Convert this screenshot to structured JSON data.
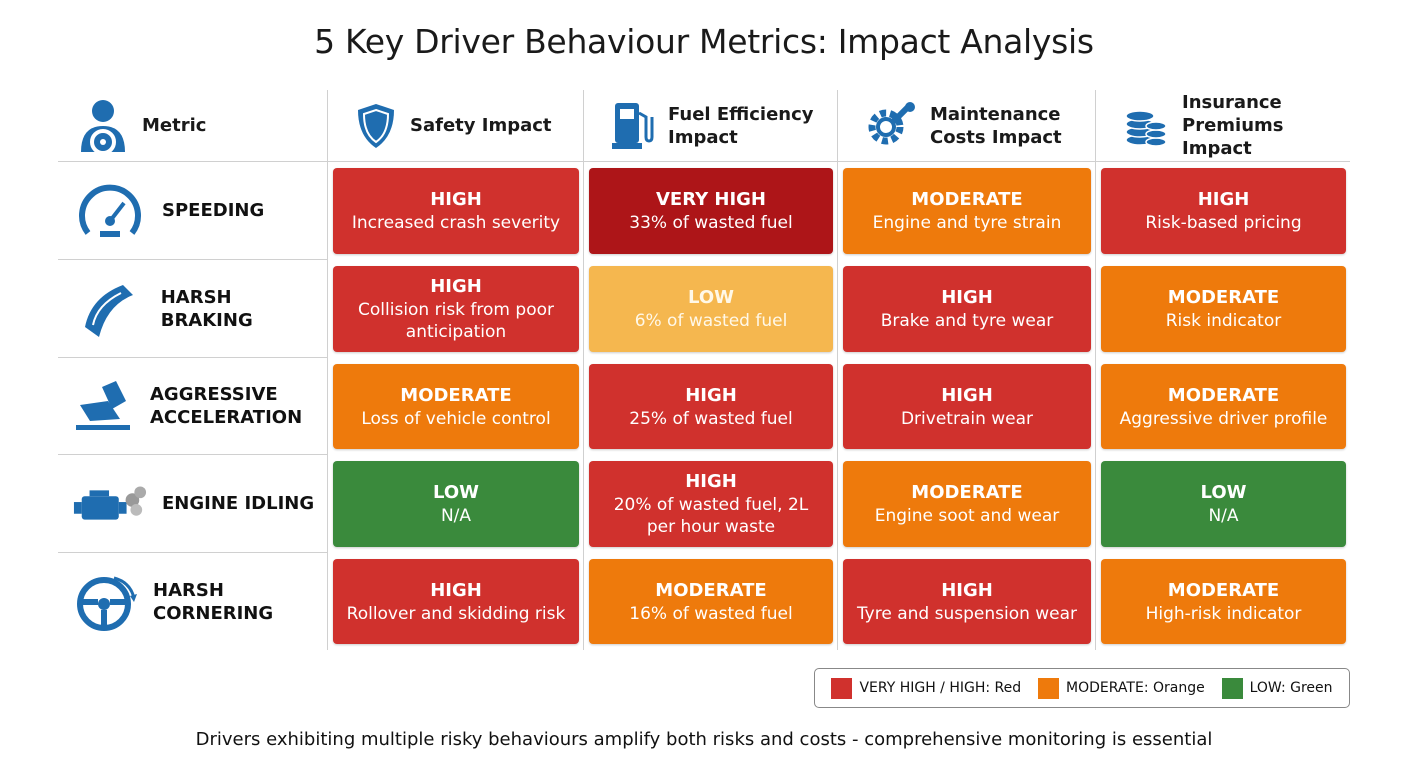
{
  "title": "5 Key Driver Behaviour Metrics: Impact Analysis",
  "colors": {
    "icon": "#1f6db0",
    "very_high": "#ad1518",
    "high": "#d0312d",
    "moderate": "#ee7a0c",
    "low_yellow": "#f5b74f",
    "low_green": "#3a8a3c"
  },
  "headers": [
    {
      "label": "Metric",
      "icon": "driver-icon"
    },
    {
      "label": "Safety Impact",
      "icon": "shield-icon"
    },
    {
      "label": "Fuel Efficiency Impact",
      "icon": "fuel-pump-icon"
    },
    {
      "label": "Maintenance Costs Impact",
      "icon": "gear-wrench-icon"
    },
    {
      "label": "Insurance Premiums Impact",
      "icon": "coins-icon"
    }
  ],
  "rows": [
    {
      "metric": "SPEEDING",
      "icon": "speedometer-icon",
      "cells": [
        {
          "level": "HIGH",
          "desc": "Increased crash severity",
          "color": "high"
        },
        {
          "level": "VERY HIGH",
          "desc": "33% of wasted fuel",
          "color": "very_high"
        },
        {
          "level": "MODERATE",
          "desc": "Engine and tyre strain",
          "color": "moderate"
        },
        {
          "level": "HIGH",
          "desc": "Risk-based pricing",
          "color": "high"
        }
      ]
    },
    {
      "metric": "HARSH BRAKING",
      "icon": "brake-pad-icon",
      "cells": [
        {
          "level": "HIGH",
          "desc": "Collision risk from poor anticipation",
          "color": "high"
        },
        {
          "level": "LOW",
          "desc": "6% of wasted fuel",
          "color": "low_yellow"
        },
        {
          "level": "HIGH",
          "desc": "Brake and tyre wear",
          "color": "high"
        },
        {
          "level": "MODERATE",
          "desc": "Risk indicator",
          "color": "moderate"
        }
      ]
    },
    {
      "metric": "AGGRESSIVE ACCELERATION",
      "icon": "accelerator-pedal-icon",
      "cells": [
        {
          "level": "MODERATE",
          "desc": "Loss of vehicle control",
          "color": "moderate"
        },
        {
          "level": "HIGH",
          "desc": "25% of wasted fuel",
          "color": "high"
        },
        {
          "level": "HIGH",
          "desc": "Drivetrain wear",
          "color": "high"
        },
        {
          "level": "MODERATE",
          "desc": "Aggressive driver profile",
          "color": "moderate"
        }
      ]
    },
    {
      "metric": "ENGINE IDLING",
      "icon": "engine-icon",
      "cells": [
        {
          "level": "LOW",
          "desc": "N/A",
          "color": "low_green"
        },
        {
          "level": "HIGH",
          "desc": "20% of wasted fuel, 2L per hour waste",
          "color": "high"
        },
        {
          "level": "MODERATE",
          "desc": "Engine soot and wear",
          "color": "moderate"
        },
        {
          "level": "LOW",
          "desc": "N/A",
          "color": "low_green"
        }
      ]
    },
    {
      "metric": "HARSH CORNERING",
      "icon": "steering-wheel-icon",
      "cells": [
        {
          "level": "HIGH",
          "desc": "Rollover and skidding risk",
          "color": "high"
        },
        {
          "level": "MODERATE",
          "desc": "16% of wasted fuel",
          "color": "moderate"
        },
        {
          "level": "HIGH",
          "desc": "Tyre and suspension wear",
          "color": "high"
        },
        {
          "level": "MODERATE",
          "desc": "High-risk indicator",
          "color": "moderate"
        }
      ]
    }
  ],
  "legend": [
    {
      "label": "VERY HIGH / HIGH: Red",
      "color": "high"
    },
    {
      "label": "MODERATE: Orange",
      "color": "moderate"
    },
    {
      "label": "LOW: Green",
      "color": "low_green"
    }
  ],
  "footer": "Drivers exhibiting multiple risky behaviours amplify both risks and costs - comprehensive monitoring is essential"
}
